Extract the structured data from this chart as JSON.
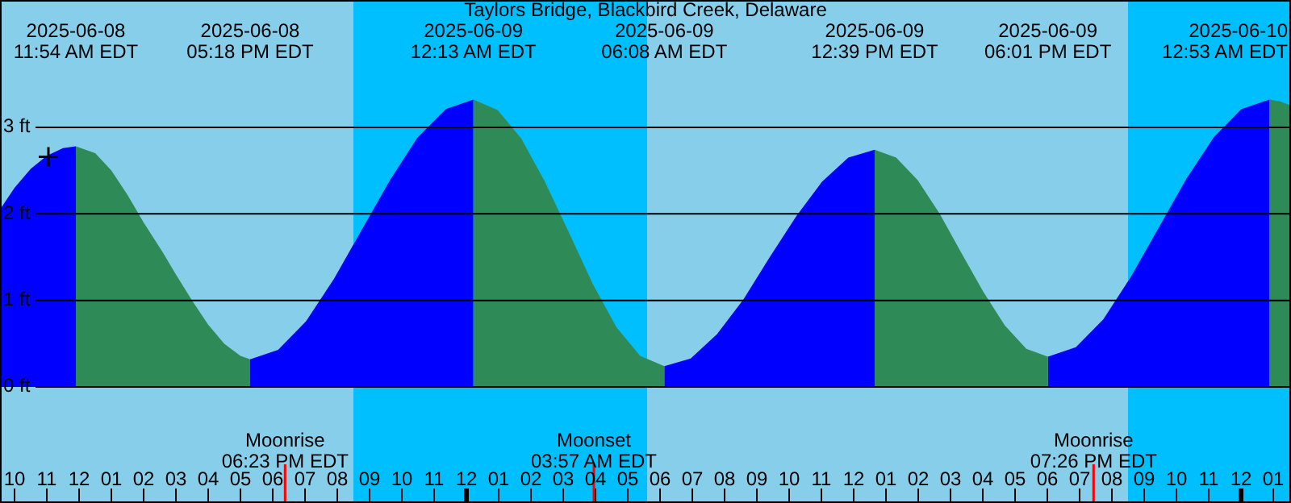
{
  "chart_data": {
    "type": "area",
    "title": "Taylors Bridge, Blackbird Creek, Delaware",
    "xlim": [
      "2025-06-08T09:33",
      "2025-06-10T01:33"
    ],
    "ylim": [
      -1.34,
      4.47
    ],
    "xticks": [
      {
        "value": "2025-06-08T10:00",
        "label": "10"
      },
      {
        "value": "2025-06-08T11:00",
        "label": "11"
      },
      {
        "value": "2025-06-08T12:00",
        "label": "12"
      },
      {
        "value": "2025-06-08T13:00",
        "label": "01"
      },
      {
        "value": "2025-06-08T14:00",
        "label": "02"
      },
      {
        "value": "2025-06-08T15:00",
        "label": "03"
      },
      {
        "value": "2025-06-08T16:00",
        "label": "04"
      },
      {
        "value": "2025-06-08T17:00",
        "label": "05"
      },
      {
        "value": "2025-06-08T18:00",
        "label": "06"
      },
      {
        "value": "2025-06-08T19:00",
        "label": "07"
      },
      {
        "value": "2025-06-08T20:00",
        "label": "08"
      },
      {
        "value": "2025-06-08T21:00",
        "label": "09"
      },
      {
        "value": "2025-06-08T22:00",
        "label": "10"
      },
      {
        "value": "2025-06-08T23:00",
        "label": "11"
      },
      {
        "value": "2025-06-09T00:00",
        "label": "12"
      },
      {
        "value": "2025-06-09T01:00",
        "label": "01"
      },
      {
        "value": "2025-06-09T02:00",
        "label": "02"
      },
      {
        "value": "2025-06-09T03:00",
        "label": "03"
      },
      {
        "value": "2025-06-09T04:00",
        "label": "04"
      },
      {
        "value": "2025-06-09T05:00",
        "label": "05"
      },
      {
        "value": "2025-06-09T06:00",
        "label": "06"
      },
      {
        "value": "2025-06-09T07:00",
        "label": "07"
      },
      {
        "value": "2025-06-09T08:00",
        "label": "08"
      },
      {
        "value": "2025-06-09T09:00",
        "label": "09"
      },
      {
        "value": "2025-06-09T10:00",
        "label": "10"
      },
      {
        "value": "2025-06-09T11:00",
        "label": "11"
      },
      {
        "value": "2025-06-09T12:00",
        "label": "12"
      },
      {
        "value": "2025-06-09T13:00",
        "label": "01"
      },
      {
        "value": "2025-06-09T14:00",
        "label": "02"
      },
      {
        "value": "2025-06-09T15:00",
        "label": "03"
      },
      {
        "value": "2025-06-09T16:00",
        "label": "04"
      },
      {
        "value": "2025-06-09T17:00",
        "label": "05"
      },
      {
        "value": "2025-06-09T18:00",
        "label": "06"
      },
      {
        "value": "2025-06-09T19:00",
        "label": "07"
      },
      {
        "value": "2025-06-09T20:00",
        "label": "08"
      },
      {
        "value": "2025-06-09T21:00",
        "label": "09"
      },
      {
        "value": "2025-06-09T22:00",
        "label": "10"
      },
      {
        "value": "2025-06-09T23:00",
        "label": "11"
      },
      {
        "value": "2025-06-10T00:00",
        "label": "12"
      },
      {
        "value": "2025-06-10T01:00",
        "label": "01"
      }
    ],
    "yticks": [
      {
        "value": 0,
        "label": "0 ft"
      },
      {
        "value": 1,
        "label": "1 ft"
      },
      {
        "value": 2,
        "label": "2 ft"
      },
      {
        "value": 3,
        "label": "3 ft"
      }
    ],
    "grid": "y",
    "bands": [
      {
        "axis": "x",
        "from": "2025-06-08T09:33",
        "to": "2025-06-08T20:30",
        "color": "#87ceeb"
      },
      {
        "axis": "x",
        "from": "2025-06-08T20:30",
        "to": "2025-06-09T05:36",
        "color": "#00bfff"
      },
      {
        "axis": "x",
        "from": "2025-06-09T05:36",
        "to": "2025-06-09T20:30",
        "color": "#87ceeb"
      },
      {
        "axis": "x",
        "from": "2025-06-09T20:30",
        "to": "2025-06-10T01:33",
        "color": "#00bfff"
      }
    ],
    "ref_lines": [
      {
        "axis": "x",
        "value": "2025-06-08T18:23",
        "label": "Moonrise\n06:23 PM EDT",
        "color": "#ff0000"
      },
      {
        "axis": "x",
        "value": "2025-06-09T03:57",
        "label": "Moonset\n03:57 AM EDT",
        "color": "#ff0000"
      },
      {
        "axis": "x",
        "value": "2025-06-09T19:26",
        "label": "Moonrise\n07:26 PM EDT",
        "color": "#ff0000"
      }
    ],
    "series": [
      {
        "color": "#0000ff",
        "x": [
          "2025-06-08T09:33",
          "2025-06-08T10:00",
          "2025-06-08T10:30",
          "2025-06-08T11:00",
          "2025-06-08T11:30",
          "2025-06-08T11:54",
          "2025-06-08T14:36",
          "2025-06-08T17:18",
          "2025-06-08T18:10",
          "2025-06-08T19:02",
          "2025-06-08T19:54",
          "2025-06-08T20:46",
          "2025-06-08T21:38",
          "2025-06-08T22:29",
          "2025-06-08T23:22",
          "2025-06-09T00:13",
          "2025-06-09T03:11",
          "2025-06-09T06:08",
          "2025-06-09T06:57",
          "2025-06-09T07:46",
          "2025-06-09T08:35",
          "2025-06-09T09:23",
          "2025-06-09T10:13",
          "2025-06-09T11:01",
          "2025-06-09T11:50",
          "2025-06-09T12:39",
          "2025-06-09T15:20",
          "2025-06-09T18:01",
          "2025-06-09T18:53",
          "2025-06-09T19:44",
          "2025-06-09T20:35",
          "2025-06-09T21:27",
          "2025-06-09T22:19",
          "2025-06-09T23:10",
          "2025-06-10T00:01",
          "2025-06-10T00:53"
        ],
        "values": [
          2.05,
          2.3,
          2.52,
          2.67,
          2.76,
          2.78,
          null,
          0.32,
          0.43,
          0.76,
          1.25,
          1.82,
          2.39,
          2.88,
          3.21,
          3.32,
          null,
          0.24,
          0.33,
          0.61,
          1.01,
          1.49,
          1.97,
          2.37,
          2.65,
          2.74,
          null,
          0.35,
          0.46,
          0.78,
          1.27,
          1.84,
          2.41,
          2.89,
          3.21,
          3.32
        ]
      },
      {
        "color": "#2e8b57",
        "x": [
          "2025-06-08T11:54",
          "2025-06-08T12:30",
          "2025-06-08T13:00",
          "2025-06-08T13:30",
          "2025-06-08T14:00",
          "2025-06-08T14:36",
          "2025-06-08T15:00",
          "2025-06-08T15:30",
          "2025-06-08T16:00",
          "2025-06-08T16:30",
          "2025-06-08T17:00",
          "2025-06-08T17:18",
          "2025-06-08T20:46",
          "2025-06-09T00:13",
          "2025-06-09T00:58",
          "2025-06-09T01:42",
          "2025-06-09T02:26",
          "2025-06-09T03:11",
          "2025-06-09T03:55",
          "2025-06-09T04:39",
          "2025-06-09T05:23",
          "2025-06-09T06:08",
          "2025-06-09T09:23",
          "2025-06-09T12:39",
          "2025-06-09T13:19",
          "2025-06-09T13:59",
          "2025-06-09T14:40",
          "2025-06-09T15:20",
          "2025-06-09T16:01",
          "2025-06-09T16:41",
          "2025-06-09T17:21",
          "2025-06-09T18:01",
          "2025-06-09T21:27",
          "2025-06-10T00:53",
          "2025-06-10T01:12",
          "2025-06-10T01:33"
        ],
        "values": [
          2.78,
          2.7,
          2.5,
          2.22,
          1.9,
          1.55,
          1.3,
          1.0,
          0.72,
          0.5,
          0.36,
          0.32,
          null,
          3.32,
          3.2,
          2.87,
          2.37,
          1.78,
          1.19,
          0.69,
          0.36,
          0.24,
          null,
          2.74,
          2.65,
          2.39,
          2.0,
          1.55,
          1.1,
          0.71,
          0.44,
          0.35,
          null,
          3.32,
          3.3,
          3.25
        ]
      },
      {
        "type": "scatter",
        "color": "#000000",
        "marker": "cross",
        "x": [
          "2025-06-08T11:03"
        ],
        "values": [
          2.66
        ]
      }
    ],
    "annotations": [
      "2025-06-08\n11:54 AM EDT",
      "2025-06-08\n05:18 PM EDT",
      "2025-06-09\n12:13 AM EDT",
      "2025-06-09\n06:08 AM EDT",
      "2025-06-09\n12:39 PM EDT",
      "2025-06-09\n06:01 PM EDT",
      "2025-06-10\n12:53 AM EDT"
    ]
  }
}
